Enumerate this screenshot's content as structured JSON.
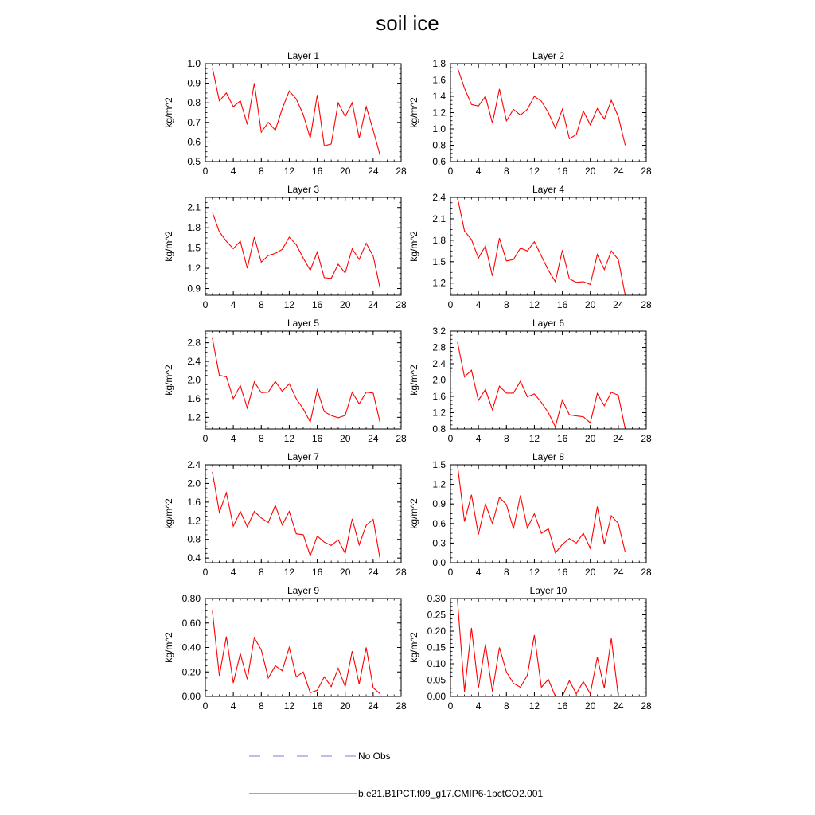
{
  "figure": {
    "title": "soil ice",
    "legend": [
      {
        "label": "No Obs",
        "style": "dashed",
        "color": "#7b7bd6"
      },
      {
        "label": "b.e21.B1PCT.f09_g17.CMIP6-1pctCO2.001",
        "style": "solid",
        "color": "#ff0000"
      }
    ]
  },
  "chart_data": [
    {
      "type": "line",
      "title": "Layer 1",
      "ylabel": "kg/m^2",
      "xlim": [
        0,
        28
      ],
      "ylim": [
        0.5,
        1.0
      ],
      "xticks": [
        "0",
        "4",
        "8",
        "12",
        "16",
        "20",
        "24",
        "28"
      ],
      "yticks": [
        "0.5",
        "0.6",
        "0.7",
        "0.8",
        "0.9",
        "1.0"
      ],
      "x": [
        1,
        2,
        3,
        4,
        5,
        6,
        7,
        8,
        9,
        10,
        11,
        12,
        13,
        14,
        15,
        16,
        17,
        18,
        19,
        20,
        21,
        22,
        23,
        24,
        25
      ],
      "series": [
        {
          "name": "b.e21.B1PCT.f09_g17.CMIP6-1pctCO2.001",
          "color": "#ff0000",
          "values": [
            0.98,
            0.81,
            0.85,
            0.78,
            0.81,
            0.69,
            0.9,
            0.65,
            0.7,
            0.66,
            0.77,
            0.86,
            0.82,
            0.74,
            0.62,
            0.84,
            0.58,
            0.59,
            0.8,
            0.73,
            0.8,
            0.62,
            0.78,
            0.66,
            0.53
          ]
        }
      ]
    },
    {
      "type": "line",
      "title": "Layer 2",
      "ylabel": "kg/m^2",
      "xlim": [
        0,
        28
      ],
      "ylim": [
        0.6,
        1.8
      ],
      "xticks": [
        "0",
        "4",
        "8",
        "12",
        "16",
        "20",
        "24",
        "28"
      ],
      "yticks": [
        "0.6",
        "0.8",
        "1.0",
        "1.2",
        "1.4",
        "1.6",
        "1.8"
      ],
      "x": [
        1,
        2,
        3,
        4,
        5,
        6,
        7,
        8,
        9,
        10,
        11,
        12,
        13,
        14,
        15,
        16,
        17,
        18,
        19,
        20,
        21,
        22,
        23,
        24,
        25
      ],
      "series": [
        {
          "name": "b.e21.B1PCT.f09_g17.CMIP6-1pctCO2.001",
          "color": "#ff0000",
          "values": [
            1.75,
            1.5,
            1.3,
            1.28,
            1.4,
            1.07,
            1.49,
            1.1,
            1.24,
            1.17,
            1.24,
            1.4,
            1.34,
            1.2,
            1.01,
            1.24,
            0.88,
            0.93,
            1.22,
            1.05,
            1.25,
            1.12,
            1.35,
            1.15,
            0.8
          ]
        }
      ]
    },
    {
      "type": "line",
      "title": "Layer 3",
      "ylabel": "kg/m^2",
      "xlim": [
        0,
        28
      ],
      "ylim": [
        0.8,
        2.25
      ],
      "xticks": [
        "0",
        "4",
        "8",
        "12",
        "16",
        "20",
        "24",
        "28"
      ],
      "yticks": [
        "0.9",
        "1.2",
        "1.5",
        "1.8",
        "2.1"
      ],
      "x": [
        1,
        2,
        3,
        4,
        5,
        6,
        7,
        8,
        9,
        10,
        11,
        12,
        13,
        14,
        15,
        16,
        17,
        18,
        19,
        20,
        21,
        22,
        23,
        24,
        25
      ],
      "series": [
        {
          "name": "b.e21.B1PCT.f09_g17.CMIP6-1pctCO2.001",
          "color": "#ff0000",
          "values": [
            2.03,
            1.74,
            1.6,
            1.49,
            1.6,
            1.2,
            1.66,
            1.29,
            1.39,
            1.42,
            1.48,
            1.66,
            1.55,
            1.35,
            1.17,
            1.44,
            1.06,
            1.05,
            1.26,
            1.13,
            1.49,
            1.33,
            1.57,
            1.38,
            0.9
          ]
        }
      ]
    },
    {
      "type": "line",
      "title": "Layer 4",
      "ylabel": "kg/m^2",
      "xlim": [
        0,
        28
      ],
      "ylim": [
        1.03,
        2.4
      ],
      "xticks": [
        "0",
        "4",
        "8",
        "12",
        "16",
        "20",
        "24",
        "28"
      ],
      "yticks": [
        "1.2",
        "1.5",
        "1.8",
        "2.1",
        "2.4"
      ],
      "x": [
        1,
        2,
        3,
        4,
        5,
        6,
        7,
        8,
        9,
        10,
        11,
        12,
        13,
        14,
        15,
        16,
        17,
        18,
        19,
        20,
        21,
        22,
        23,
        24,
        25
      ],
      "series": [
        {
          "name": "b.e21.B1PCT.f09_g17.CMIP6-1pctCO2.001",
          "color": "#ff0000",
          "values": [
            2.4,
            1.93,
            1.81,
            1.55,
            1.72,
            1.3,
            1.83,
            1.51,
            1.53,
            1.69,
            1.65,
            1.78,
            1.58,
            1.38,
            1.22,
            1.66,
            1.26,
            1.21,
            1.22,
            1.18,
            1.6,
            1.39,
            1.65,
            1.53,
            1.03
          ]
        }
      ]
    },
    {
      "type": "line",
      "title": "Layer 5",
      "ylabel": "kg/m^2",
      "xlim": [
        0,
        28
      ],
      "ylim": [
        0.95,
        3.05
      ],
      "xticks": [
        "0",
        "4",
        "8",
        "12",
        "16",
        "20",
        "24",
        "28"
      ],
      "yticks": [
        "1.2",
        "1.6",
        "2.0",
        "2.4",
        "2.8"
      ],
      "x": [
        1,
        2,
        3,
        4,
        5,
        6,
        7,
        8,
        9,
        10,
        11,
        12,
        13,
        14,
        15,
        16,
        17,
        18,
        19,
        20,
        21,
        22,
        23,
        24,
        25
      ],
      "series": [
        {
          "name": "b.e21.B1PCT.f09_g17.CMIP6-1pctCO2.001",
          "color": "#ff0000",
          "values": [
            2.9,
            2.1,
            2.07,
            1.6,
            1.88,
            1.4,
            1.96,
            1.73,
            1.74,
            1.97,
            1.76,
            1.92,
            1.6,
            1.38,
            1.1,
            1.79,
            1.32,
            1.24,
            1.19,
            1.24,
            1.74,
            1.49,
            1.74,
            1.72,
            1.08
          ]
        }
      ]
    },
    {
      "type": "line",
      "title": "Layer 6",
      "ylabel": "kg/m^2",
      "xlim": [
        0,
        28
      ],
      "ylim": [
        0.8,
        3.2
      ],
      "xticks": [
        "0",
        "4",
        "8",
        "12",
        "16",
        "20",
        "24",
        "28"
      ],
      "yticks": [
        "0.8",
        "1.2",
        "1.6",
        "2.0",
        "2.4",
        "2.8",
        "3.2"
      ],
      "x": [
        1,
        2,
        3,
        4,
        5,
        6,
        7,
        8,
        9,
        10,
        11,
        12,
        13,
        14,
        15,
        16,
        17,
        18,
        19,
        20,
        21,
        22,
        23,
        24,
        25
      ],
      "series": [
        {
          "name": "b.e21.B1PCT.f09_g17.CMIP6-1pctCO2.001",
          "color": "#ff0000",
          "values": [
            2.93,
            2.08,
            2.24,
            1.5,
            1.77,
            1.27,
            1.85,
            1.68,
            1.68,
            1.97,
            1.59,
            1.66,
            1.45,
            1.2,
            0.85,
            1.51,
            1.15,
            1.12,
            1.1,
            0.95,
            1.67,
            1.37,
            1.7,
            1.63,
            0.8
          ]
        }
      ]
    },
    {
      "type": "line",
      "title": "Layer 7",
      "ylabel": "kg/m^2",
      "xlim": [
        0,
        28
      ],
      "ylim": [
        0.3,
        2.4
      ],
      "xticks": [
        "0",
        "4",
        "8",
        "12",
        "16",
        "20",
        "24",
        "28"
      ],
      "yticks": [
        "0.4",
        "0.8",
        "1.2",
        "1.6",
        "2.0",
        "2.4"
      ],
      "x": [
        1,
        2,
        3,
        4,
        5,
        6,
        7,
        8,
        9,
        10,
        11,
        12,
        13,
        14,
        15,
        16,
        17,
        18,
        19,
        20,
        21,
        22,
        23,
        24,
        25
      ],
      "series": [
        {
          "name": "b.e21.B1PCT.f09_g17.CMIP6-1pctCO2.001",
          "color": "#ff0000",
          "values": [
            2.25,
            1.38,
            1.8,
            1.08,
            1.4,
            1.07,
            1.4,
            1.26,
            1.16,
            1.53,
            1.11,
            1.4,
            0.92,
            0.9,
            0.45,
            0.87,
            0.74,
            0.67,
            0.79,
            0.5,
            1.24,
            0.68,
            1.1,
            1.23,
            0.37
          ]
        }
      ]
    },
    {
      "type": "line",
      "title": "Layer 8",
      "ylabel": "kg/m^2",
      "xlim": [
        0,
        28
      ],
      "ylim": [
        0.0,
        1.5
      ],
      "xticks": [
        "0",
        "4",
        "8",
        "12",
        "16",
        "20",
        "24",
        "28"
      ],
      "yticks": [
        "0.0",
        "0.3",
        "0.6",
        "0.9",
        "1.2",
        "1.5"
      ],
      "x": [
        1,
        2,
        3,
        4,
        5,
        6,
        7,
        8,
        9,
        10,
        11,
        12,
        13,
        14,
        15,
        16,
        17,
        18,
        19,
        20,
        21,
        22,
        23,
        24,
        25
      ],
      "series": [
        {
          "name": "b.e21.B1PCT.f09_g17.CMIP6-1pctCO2.001",
          "color": "#ff0000",
          "values": [
            1.5,
            0.63,
            1.04,
            0.43,
            0.9,
            0.6,
            1.0,
            0.89,
            0.52,
            1.03,
            0.53,
            0.75,
            0.45,
            0.52,
            0.15,
            0.28,
            0.37,
            0.3,
            0.45,
            0.22,
            0.86,
            0.28,
            0.72,
            0.6,
            0.16
          ]
        }
      ]
    },
    {
      "type": "line",
      "title": "Layer 9",
      "ylabel": "kg/m^2",
      "xlim": [
        0,
        28
      ],
      "ylim": [
        0.0,
        0.8
      ],
      "xticks": [
        "0",
        "4",
        "8",
        "12",
        "16",
        "20",
        "24",
        "28"
      ],
      "yticks": [
        "0.00",
        "0.20",
        "0.40",
        "0.60",
        "0.80"
      ],
      "x": [
        1,
        2,
        3,
        4,
        5,
        6,
        7,
        8,
        9,
        10,
        11,
        12,
        13,
        14,
        15,
        16,
        17,
        18,
        19,
        20,
        21,
        22,
        23,
        24,
        25
      ],
      "series": [
        {
          "name": "b.e21.B1PCT.f09_g17.CMIP6-1pctCO2.001",
          "color": "#ff0000",
          "values": [
            0.7,
            0.17,
            0.49,
            0.11,
            0.35,
            0.14,
            0.48,
            0.38,
            0.15,
            0.25,
            0.21,
            0.4,
            0.16,
            0.2,
            0.03,
            0.05,
            0.16,
            0.08,
            0.23,
            0.08,
            0.37,
            0.1,
            0.4,
            0.07,
            0.02
          ]
        }
      ]
    },
    {
      "type": "line",
      "title": "Layer 10",
      "ylabel": "kg/m^2",
      "xlim": [
        0,
        28
      ],
      "ylim": [
        0.0,
        0.3
      ],
      "xticks": [
        "0",
        "4",
        "8",
        "12",
        "16",
        "20",
        "24",
        "28"
      ],
      "yticks": [
        "0.00",
        "0.05",
        "0.10",
        "0.15",
        "0.20",
        "0.25",
        "0.30"
      ],
      "x": [
        1,
        2,
        3,
        4,
        5,
        6,
        7,
        8,
        9,
        10,
        11,
        12,
        13,
        14,
        15,
        16,
        17,
        18,
        19,
        20,
        21,
        22,
        23,
        24,
        25
      ],
      "series": [
        {
          "name": "b.e21.B1PCT.f09_g17.CMIP6-1pctCO2.001",
          "color": "#ff0000",
          "values": [
            0.295,
            0.015,
            0.21,
            0.025,
            0.16,
            0.015,
            0.15,
            0.075,
            0.04,
            0.028,
            0.065,
            0.188,
            0.028,
            0.052,
            0.0,
            0.0,
            0.048,
            0.008,
            0.045,
            0.008,
            0.12,
            0.025,
            0.178,
            0.0,
            0.0
          ]
        }
      ]
    }
  ]
}
